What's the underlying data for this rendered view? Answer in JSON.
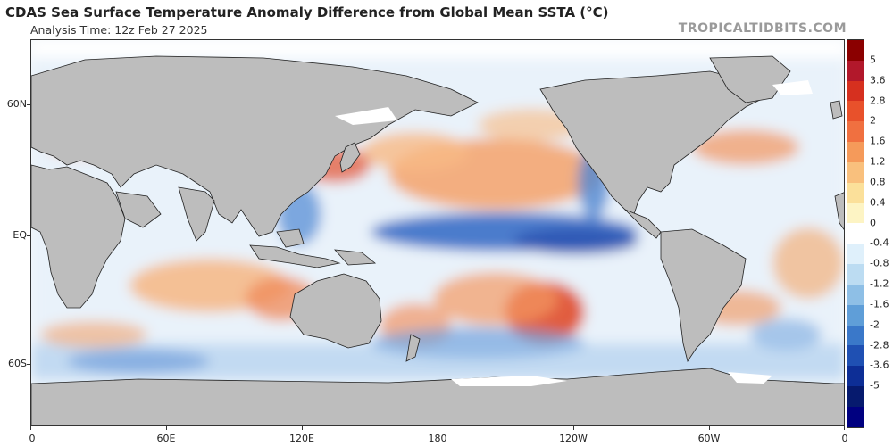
{
  "header": {
    "title": "CDAS Sea Surface Temperature Anomaly Difference from Global Mean SSTA (°C)",
    "subtitle": "Analysis Time: 12z Feb 27 2025",
    "credit": "TROPICALTIDBITS.COM"
  },
  "map": {
    "lat_labels": [
      "60N",
      "EQ",
      "60S"
    ],
    "lon_labels": [
      "0",
      "60E",
      "120E",
      "180",
      "120W",
      "60W",
      "0"
    ],
    "land_color": "#bdbdbd",
    "ice_color": "#ffffff"
  },
  "colorbar": {
    "labels": [
      "5",
      "3.6",
      "2.8",
      "2",
      "1.6",
      "1.2",
      "0.8",
      "0.4",
      "0",
      "-0.4",
      "-0.8",
      "-1.2",
      "-1.6",
      "-2",
      "-2.8",
      "-3.6",
      "-5"
    ],
    "colors": [
      "#8b0000",
      "#b2182b",
      "#d6301f",
      "#e8512b",
      "#f07040",
      "#f59a5a",
      "#f9c07d",
      "#fbe09a",
      "#fdf4c4",
      "#ffffff",
      "#dff0fb",
      "#bcdcf2",
      "#8ebfe6",
      "#5f9ed8",
      "#3a78c9",
      "#1f50b3",
      "#0d2e96",
      "#061a6e",
      "#000080"
    ]
  }
}
